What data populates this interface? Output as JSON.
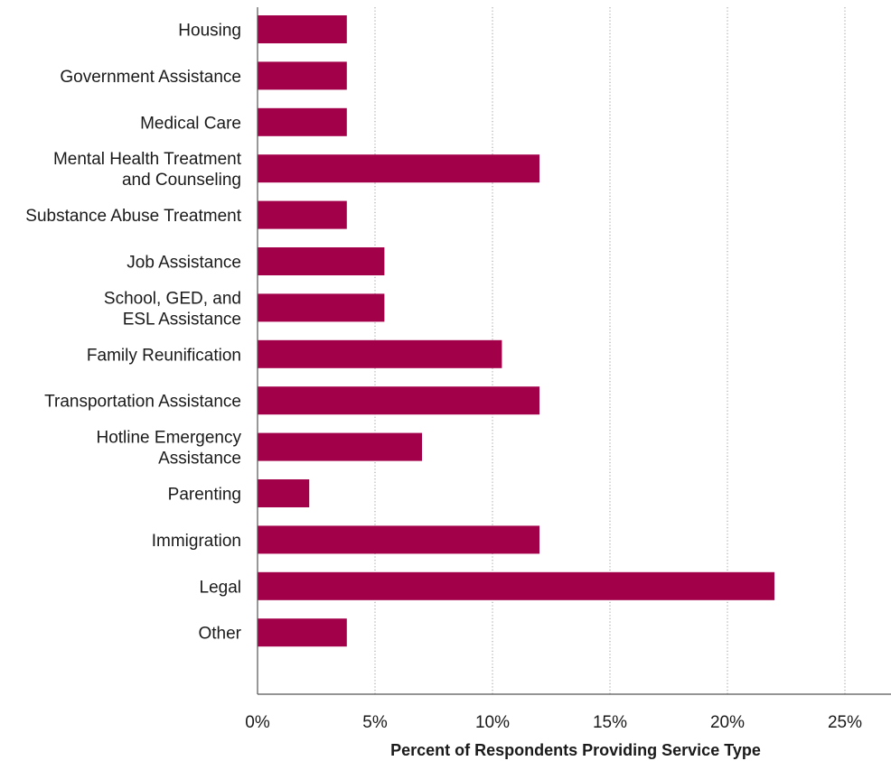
{
  "chart_data": {
    "type": "bar",
    "orientation": "horizontal",
    "categories": [
      [
        "Housing"
      ],
      [
        "Government Assistance"
      ],
      [
        "Medical Care"
      ],
      [
        "Mental Health Treatment",
        "and Counseling"
      ],
      [
        "Substance Abuse Treatment"
      ],
      [
        "Job Assistance"
      ],
      [
        "School, GED, and",
        "ESL Assistance"
      ],
      [
        "Family Reunification"
      ],
      [
        "Transportation Assistance"
      ],
      [
        "Hotline Emergency",
        "Assistance"
      ],
      [
        "Parenting"
      ],
      [
        "Immigration"
      ],
      [
        "Legal"
      ],
      [
        "Other"
      ]
    ],
    "values": [
      3.8,
      3.8,
      3.8,
      12.0,
      3.8,
      5.4,
      5.4,
      10.4,
      12.0,
      7.0,
      2.2,
      12.0,
      22.0,
      3.8
    ],
    "xlim": [
      0,
      27
    ],
    "xticks": [
      0,
      5,
      10,
      15,
      20,
      25
    ],
    "tick_labels": [
      "0%",
      "5%",
      "10%",
      "15%",
      "20%",
      "25%"
    ],
    "xlabel": "Percent of Respondents Providing Service Type",
    "ylabel": "",
    "grid": "vertical dotted",
    "bar_color": "#a3004a",
    "grid_color": "#9a9a9a",
    "axis_color": "#555555"
  }
}
